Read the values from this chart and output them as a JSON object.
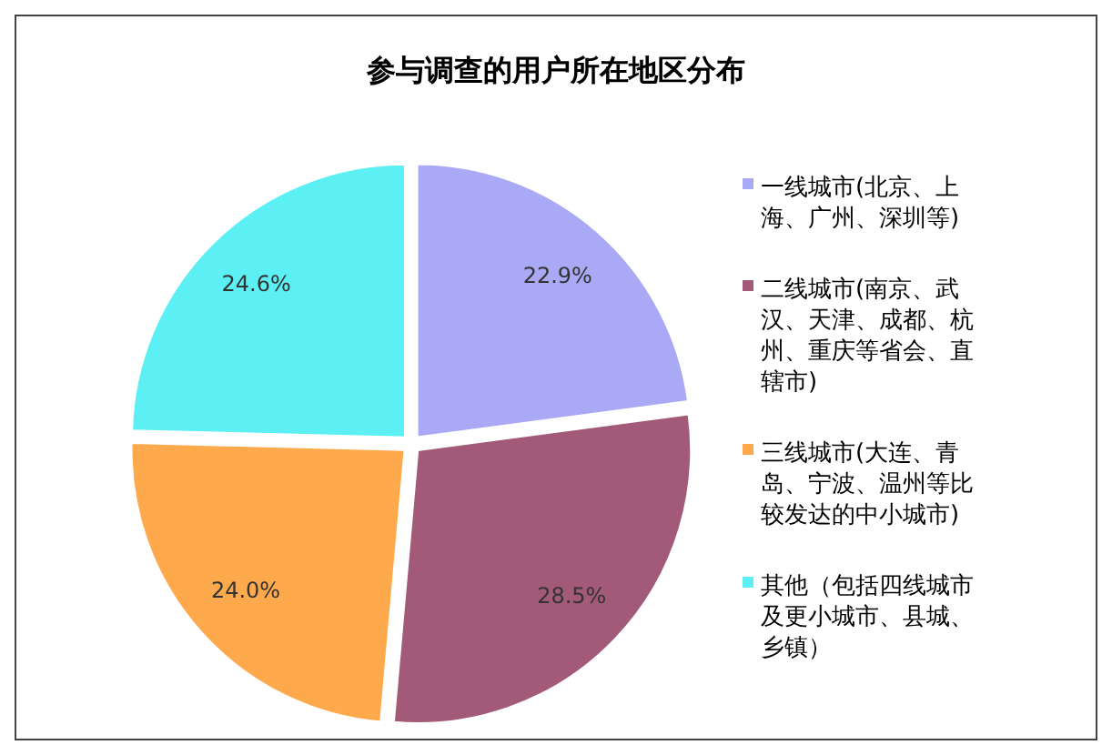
{
  "chart_data": {
    "type": "pie",
    "title": "参与调查的用户所在地区分布",
    "categories": [
      "一线城市(北京、上海、广州、深圳等)",
      "二线城市(南京、武汉、天津、成都、杭州、重庆等省会、直辖市)",
      "三线城市(大连、青岛、宁波、温州等比较发达的中小城市)",
      "其他（包括四线城市及更小城市、县城、乡镇）"
    ],
    "values": [
      22.9,
      28.5,
      24.0,
      24.6
    ],
    "colors": [
      "#a9a9f5",
      "#a35a78",
      "#ffa94d",
      "#5cf0f5"
    ],
    "value_labels": [
      "22.9%",
      "28.5%",
      "24.0%",
      "24.6%"
    ],
    "legend": "right"
  }
}
